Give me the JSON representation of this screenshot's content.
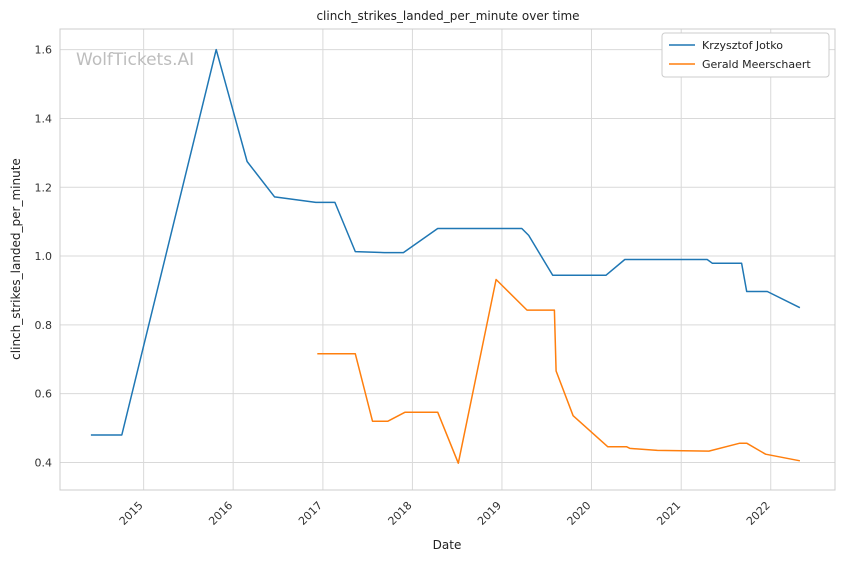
{
  "watermark": "WolfTickets.AI",
  "chart_data": {
    "type": "line",
    "title": "clinch_strikes_landed_per_minute over time",
    "xlabel": "Date",
    "ylabel": "clinch_strikes_landed_per_minute",
    "xlim": [
      "2014-01-25",
      "2022-09-20"
    ],
    "ylim": [
      0.32,
      1.66
    ],
    "x_ticks": [
      "2015",
      "2016",
      "2017",
      "2018",
      "2019",
      "2020",
      "2021",
      "2022"
    ],
    "y_ticks": [
      "0.4",
      "0.6",
      "0.8",
      "1.0",
      "1.2",
      "1.4",
      "1.6"
    ],
    "grid": true,
    "legend_position": "top-right",
    "series": [
      {
        "name": "Krzysztof Jotko",
        "color": "#1f77b4",
        "points": [
          [
            "2014-05-31",
            0.48
          ],
          [
            "2014-10-04",
            0.48
          ],
          [
            "2015-10-24",
            1.6
          ],
          [
            "2016-02-27",
            1.275
          ],
          [
            "2016-06-18",
            1.172
          ],
          [
            "2016-12-03",
            1.156
          ],
          [
            "2017-02-19",
            1.156
          ],
          [
            "2017-05-13",
            1.013
          ],
          [
            "2017-09-09",
            1.01
          ],
          [
            "2017-11-25",
            1.01
          ],
          [
            "2018-04-14",
            1.08
          ],
          [
            "2019-03-23",
            1.08
          ],
          [
            "2019-04-20",
            1.06
          ],
          [
            "2019-07-27",
            0.944
          ],
          [
            "2020-02-29",
            0.944
          ],
          [
            "2020-05-16",
            0.99
          ],
          [
            "2021-04-17",
            0.99
          ],
          [
            "2021-05-08",
            0.979
          ],
          [
            "2021-09-04",
            0.979
          ],
          [
            "2021-09-25",
            0.897
          ],
          [
            "2021-12-18",
            0.897
          ],
          [
            "2022-04-30",
            0.85
          ]
        ]
      },
      {
        "name": "Gerald Meerschaert",
        "color": "#ff7f0e",
        "points": [
          [
            "2016-12-09",
            0.716
          ],
          [
            "2017-05-13",
            0.716
          ],
          [
            "2017-07-22",
            0.52
          ],
          [
            "2017-09-23",
            0.52
          ],
          [
            "2017-12-02",
            0.546
          ],
          [
            "2018-04-14",
            0.546
          ],
          [
            "2018-07-07",
            0.398
          ],
          [
            "2018-12-08",
            0.932
          ],
          [
            "2019-04-13",
            0.843
          ],
          [
            "2019-08-03",
            0.843
          ],
          [
            "2019-08-10",
            0.666
          ],
          [
            "2019-10-18",
            0.536
          ],
          [
            "2020-03-07",
            0.446
          ],
          [
            "2020-05-23",
            0.446
          ],
          [
            "2020-06-06",
            0.441
          ],
          [
            "2020-09-26",
            0.435
          ],
          [
            "2021-04-24",
            0.433
          ],
          [
            "2021-08-28",
            0.456
          ],
          [
            "2021-09-25",
            0.456
          ],
          [
            "2021-12-11",
            0.424
          ],
          [
            "2022-04-30",
            0.405
          ]
        ]
      }
    ]
  }
}
